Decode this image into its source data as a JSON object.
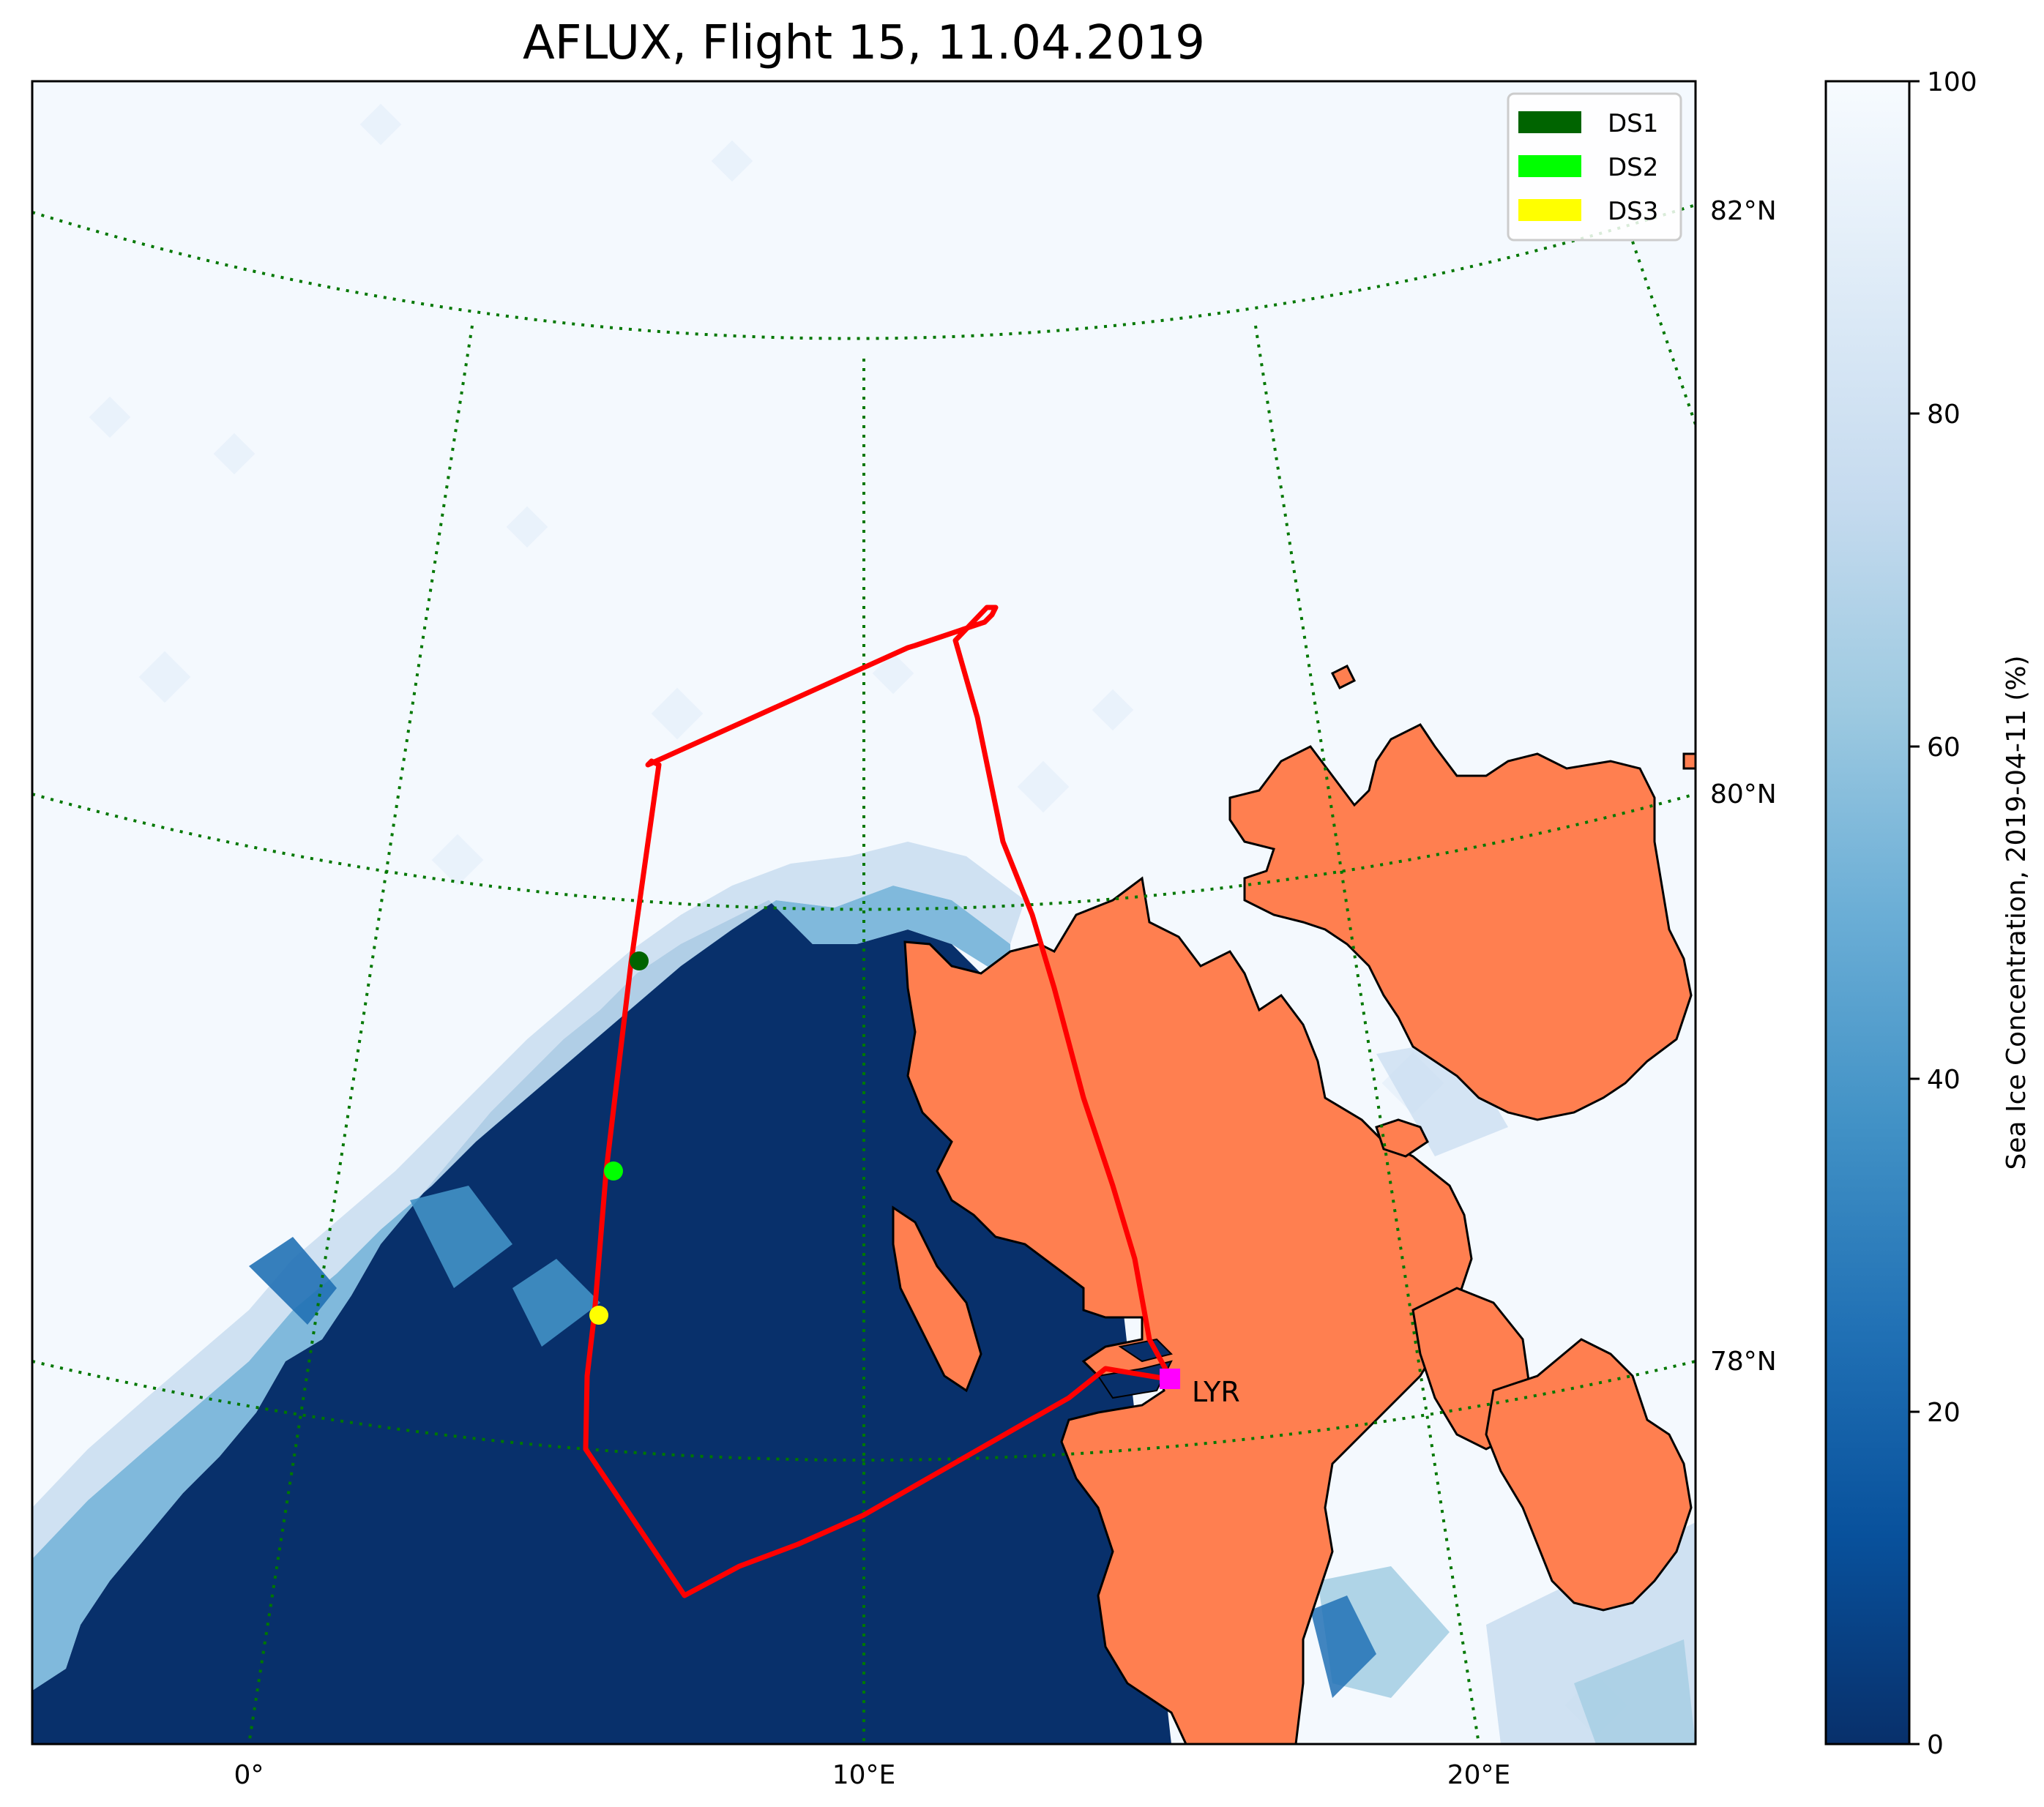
{
  "title": "AFLUX, Flight 15, 11.04.2019",
  "colors": {
    "ocean": "#08306b",
    "ice_full": "#f4f9fe",
    "land": "#ff7f50",
    "track": "#ff0000",
    "grid": "#007700",
    "ds1": "#006400",
    "ds2": "#00ff00",
    "ds3": "#ffff00",
    "airport": "#ff00ff"
  },
  "legend": {
    "items": [
      {
        "label": "DS1",
        "color": "#006400"
      },
      {
        "label": "DS2",
        "color": "#00ff00"
      },
      {
        "label": "DS3",
        "color": "#ffff00"
      }
    ]
  },
  "lat_labels": [
    "82°N",
    "80°N",
    "78°N"
  ],
  "lon_labels": [
    "0°",
    "10°E",
    "20°E"
  ],
  "airport_label": "LYR",
  "colorbar": {
    "label": "Sea Ice Concentration, 2019-04-11 (%)",
    "ticks": [
      "100",
      "80",
      "60",
      "40",
      "20",
      "0"
    ],
    "range": [
      0,
      100
    ]
  }
}
